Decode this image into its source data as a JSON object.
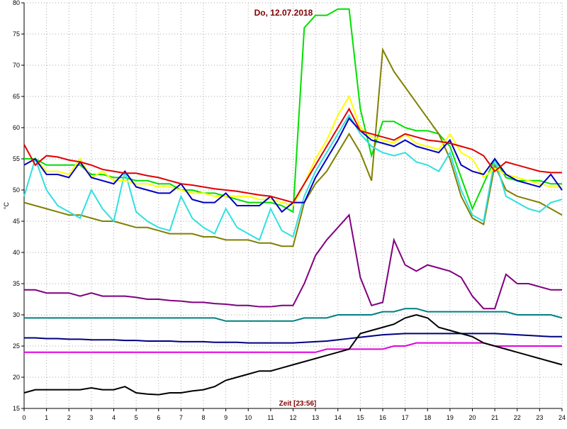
{
  "chart_data": {
    "type": "line",
    "title": "Do, 12.07.2018",
    "xlabel": "Zeit [23:56]",
    "ylabel": "°C",
    "xlim": [
      0,
      24
    ],
    "ylim": [
      15,
      80
    ],
    "xticks": [
      0,
      1,
      2,
      3,
      4,
      5,
      6,
      7,
      8,
      9,
      10,
      11,
      12,
      13,
      14,
      15,
      16,
      17,
      18,
      19,
      20,
      21,
      22,
      23,
      24
    ],
    "yticks": [
      15,
      20,
      25,
      30,
      35,
      40,
      45,
      50,
      55,
      60,
      65,
      70,
      75,
      80
    ],
    "grid": true,
    "x": [
      0,
      0.5,
      1,
      1.5,
      2,
      2.5,
      3,
      3.5,
      4,
      4.5,
      5,
      5.5,
      6,
      6.5,
      7,
      7.5,
      8,
      8.5,
      9,
      9.5,
      10,
      10.5,
      11,
      11.5,
      12,
      12.5,
      13,
      13.5,
      14,
      14.5,
      15,
      15.5,
      16,
      16.5,
      17,
      17.5,
      18,
      18.5,
      19,
      19.5,
      20,
      20.5,
      21,
      21.5,
      22,
      22.5,
      23,
      23.5,
      24
    ],
    "series": [
      {
        "color": "#00e000",
        "values": [
          55,
          55,
          54,
          54,
          54,
          54,
          52.5,
          52.5,
          52,
          52,
          51.5,
          51.5,
          51,
          51,
          50,
          50,
          49.5,
          49.5,
          49,
          48.5,
          48,
          48,
          48,
          47.5,
          46.5,
          76,
          78,
          78,
          79,
          79,
          63,
          55.5,
          61,
          61,
          60,
          59.5,
          59.5,
          59,
          57,
          52,
          47,
          51,
          55,
          52,
          51.5,
          51.5,
          51.5,
          51,
          51
        ]
      },
      {
        "color": "#808000",
        "values": [
          48,
          47.5,
          47,
          46.5,
          46,
          46,
          45.5,
          45,
          45,
          44.5,
          44,
          44,
          43.5,
          43,
          43,
          43,
          42.5,
          42.5,
          42,
          42,
          42,
          41.5,
          41.5,
          41,
          41,
          48,
          51,
          53,
          56,
          59,
          56,
          51.5,
          72.5,
          69,
          66.5,
          64,
          61.5,
          59,
          55,
          49,
          45.5,
          44.5,
          54,
          50,
          49,
          48.5,
          48,
          47,
          46
        ]
      },
      {
        "color": "#30e0e0",
        "values": [
          49,
          55,
          50,
          47.5,
          46.5,
          45.5,
          50,
          47,
          45,
          53,
          46.5,
          45,
          44,
          43.5,
          49,
          45.5,
          44,
          43,
          47,
          44,
          43,
          42,
          47,
          43.5,
          42.5,
          49,
          53,
          56,
          59,
          62,
          59,
          57,
          56,
          55.5,
          56,
          54.5,
          54,
          53,
          56,
          50,
          46,
          45,
          55,
          49,
          48,
          47,
          46.5,
          48,
          48.5
        ]
      },
      {
        "color": "#ffff00",
        "values": [
          54,
          55,
          53,
          53,
          52.5,
          55,
          52,
          53,
          51.5,
          51.5,
          51,
          51,
          50.5,
          50.5,
          50,
          49.5,
          49.5,
          49,
          49,
          49,
          49,
          48.5,
          48.5,
          48,
          47.5,
          51,
          55,
          58,
          62,
          65,
          60,
          58.5,
          58,
          57.5,
          59,
          57.5,
          57,
          56.5,
          59,
          56,
          55,
          52,
          53.5,
          52.5,
          52,
          51.5,
          51,
          50.5,
          50.5
        ]
      },
      {
        "color": "#0000c0",
        "values": [
          54,
          55,
          52.5,
          52.5,
          52,
          54.5,
          52,
          51.5,
          51,
          53,
          50.5,
          50,
          49.5,
          49.5,
          51,
          48.5,
          48,
          48,
          49.5,
          47.5,
          47.5,
          47.5,
          49,
          46.5,
          48,
          48,
          52,
          55,
          58,
          61.5,
          59.5,
          58,
          57.5,
          57,
          58,
          57,
          56.5,
          56,
          58,
          54,
          53,
          52.5,
          55,
          52.5,
          51.5,
          51,
          50.5,
          52.5,
          50
        ]
      },
      {
        "color": "#e00000",
        "values": [
          57.3,
          54,
          55.5,
          55.3,
          54.8,
          54.5,
          54,
          53.3,
          53,
          52.7,
          52.7,
          52.3,
          52,
          51.5,
          51,
          50.8,
          50.5,
          50.2,
          50,
          49.8,
          49.5,
          49.2,
          49,
          48.5,
          48,
          51,
          54,
          57,
          60,
          63,
          59.5,
          59,
          58.5,
          58,
          59,
          58.5,
          58,
          57.8,
          57.5,
          57,
          56.5,
          55.5,
          53,
          54.5,
          54,
          53.5,
          53,
          52.8,
          52.8
        ]
      },
      {
        "color": "#800080",
        "values": [
          34,
          34,
          33.5,
          33.5,
          33.5,
          33,
          33.5,
          33,
          33,
          33,
          32.8,
          32.5,
          32.5,
          32.3,
          32.2,
          32,
          32,
          31.8,
          31.7,
          31.5,
          31.5,
          31.3,
          31.3,
          31.5,
          31.5,
          35,
          39.5,
          42,
          44,
          46,
          36,
          31.5,
          32,
          42,
          38,
          37,
          38,
          37.5,
          37,
          36,
          33,
          31,
          31,
          36.5,
          35,
          35,
          34.5,
          34,
          34
        ]
      },
      {
        "color": "#008080",
        "values": [
          29.5,
          29.5,
          29.5,
          29.5,
          29.5,
          29.5,
          29.5,
          29.5,
          29.5,
          29.5,
          29.5,
          29.5,
          29.5,
          29.5,
          29.5,
          29.5,
          29.5,
          29.5,
          29,
          29,
          29,
          29,
          29,
          29,
          29,
          29.5,
          29.5,
          29.5,
          30,
          30,
          30,
          30,
          30.5,
          30.5,
          31,
          31,
          30.5,
          30.5,
          30.5,
          30.5,
          30.5,
          30.5,
          30.5,
          30.5,
          30,
          30,
          30,
          30,
          29.5
        ]
      },
      {
        "color": "#000080",
        "values": [
          26.3,
          26.3,
          26.2,
          26.2,
          26.1,
          26.1,
          26,
          26,
          26,
          25.9,
          25.9,
          25.8,
          25.8,
          25.8,
          25.7,
          25.7,
          25.7,
          25.6,
          25.6,
          25.6,
          25.5,
          25.5,
          25.5,
          25.5,
          25.5,
          25.6,
          25.7,
          25.8,
          26,
          26.2,
          26.4,
          26.6,
          26.8,
          26.9,
          27,
          27,
          27,
          27,
          27,
          27,
          27,
          27,
          27,
          26.9,
          26.8,
          26.7,
          26.6,
          26.5,
          26.5
        ]
      },
      {
        "color": "#e000e0",
        "values": [
          24,
          24,
          24,
          24,
          24,
          24,
          24,
          24,
          24,
          24,
          24,
          24,
          24,
          24,
          24,
          24,
          24,
          24,
          24,
          24,
          24,
          24,
          24,
          24,
          24,
          24,
          24,
          24.5,
          24.5,
          24.5,
          24.5,
          24.5,
          24.5,
          25,
          25,
          25.5,
          25.5,
          25.5,
          25.5,
          25.5,
          25.5,
          25.5,
          25,
          25,
          25,
          25,
          25,
          25,
          25
        ]
      },
      {
        "color": "#000000",
        "values": [
          17.5,
          18,
          18,
          18,
          18,
          18,
          18.3,
          18,
          18,
          18.5,
          17.5,
          17.3,
          17.2,
          17.5,
          17.5,
          17.8,
          18,
          18.5,
          19.5,
          20,
          20.5,
          21,
          21,
          21.5,
          22,
          22.5,
          23,
          23.5,
          24,
          24.5,
          27,
          27.5,
          28,
          28.5,
          29.5,
          30,
          29.5,
          28,
          27.5,
          27,
          26.5,
          25.5,
          25,
          24.5,
          24,
          23.5,
          23,
          22.5,
          22
        ]
      }
    ]
  }
}
